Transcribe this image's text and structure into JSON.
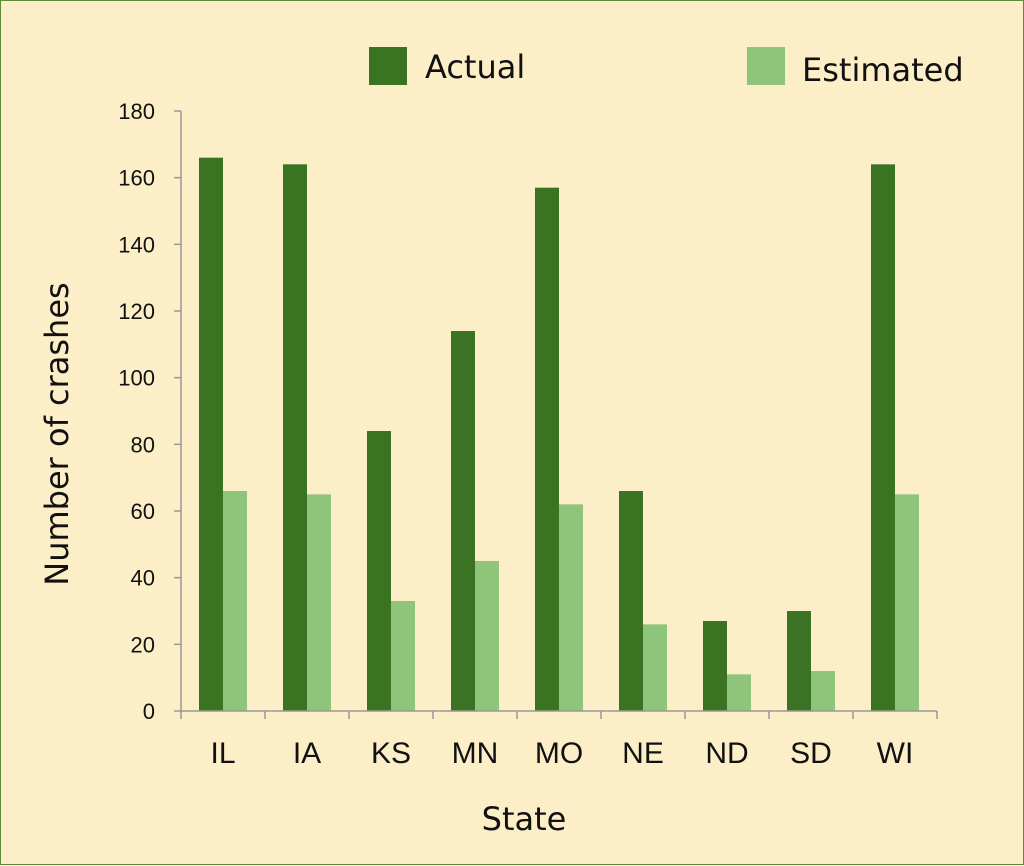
{
  "chart_data": {
    "type": "bar",
    "categories": [
      "IL",
      "IA",
      "KS",
      "MN",
      "MO",
      "NE",
      "ND",
      "SD",
      "WI"
    ],
    "series": [
      {
        "name": "Actual",
        "color": "#3a7322",
        "values": [
          166,
          164,
          84,
          114,
          157,
          66,
          27,
          30,
          164
        ]
      },
      {
        "name": "Estimated",
        "color": "#8fc57b",
        "values": [
          66,
          65,
          33,
          45,
          62,
          26,
          11,
          12,
          65
        ]
      }
    ],
    "title": "",
    "xlabel": "State",
    "ylabel": "Number of crashes",
    "ylim": [
      0,
      180
    ],
    "yticks": [
      0,
      20,
      40,
      60,
      80,
      100,
      120,
      140,
      160,
      180
    ],
    "grid": false,
    "legend_position": "top"
  },
  "colors": {
    "background": "#fcefc7",
    "border": "#5e8a3a",
    "axis": "#999999"
  }
}
